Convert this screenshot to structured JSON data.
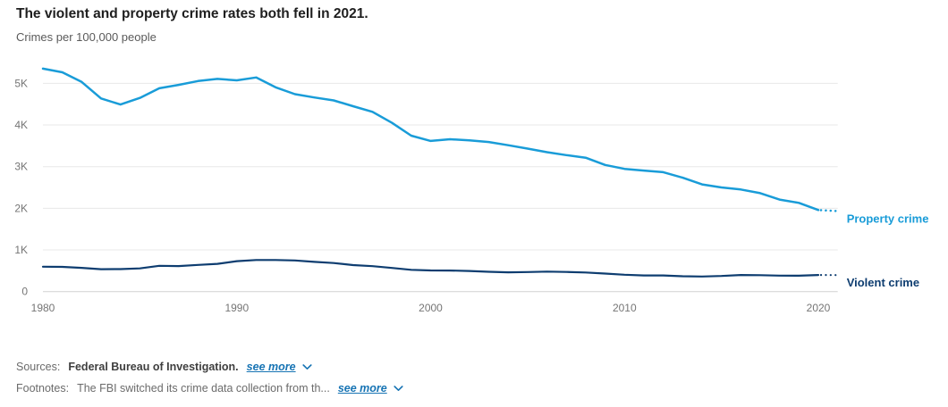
{
  "header": {
    "title": "The violent and property crime rates both fell in 2021.",
    "subtitle": "Crimes per 100,000 people"
  },
  "chart_data": {
    "type": "line",
    "title": "The violent and property crime rates both fell in 2021.",
    "ylabel": "Crimes per 100,000 people",
    "xlabel": "",
    "grid": "horizontal",
    "legend_position": "right-of-line-end",
    "dotted_final_segment": true,
    "ylim": [
      0,
      5600
    ],
    "x": [
      1980,
      1981,
      1982,
      1983,
      1984,
      1985,
      1986,
      1987,
      1988,
      1989,
      1990,
      1991,
      1992,
      1993,
      1994,
      1995,
      1996,
      1997,
      1998,
      1999,
      2000,
      2001,
      2002,
      2003,
      2004,
      2005,
      2006,
      2007,
      2008,
      2009,
      2010,
      2011,
      2012,
      2013,
      2014,
      2015,
      2016,
      2017,
      2018,
      2019,
      2020,
      2021
    ],
    "x_ticks": [
      "1980",
      "1990",
      "2000",
      "2010",
      "2020"
    ],
    "x_tick_years": [
      1980,
      1990,
      2000,
      2010,
      2020
    ],
    "y_ticks": [
      {
        "value": 0,
        "label": "0"
      },
      {
        "value": 1000,
        "label": "1K"
      },
      {
        "value": 2000,
        "label": "2K"
      },
      {
        "value": 3000,
        "label": "3K"
      },
      {
        "value": 4000,
        "label": "4K"
      },
      {
        "value": 5000,
        "label": "5K"
      }
    ],
    "series": [
      {
        "name": "Property crime",
        "color": "#199cd8",
        "values": [
          5353,
          5264,
          5033,
          4637,
          4492,
          4651,
          4882,
          4963,
          5054,
          5107,
          5073,
          5140,
          4904,
          4740,
          4660,
          4591,
          4451,
          4316,
          4053,
          3744,
          3618,
          3658,
          3631,
          3591,
          3514,
          3432,
          3347,
          3276,
          3215,
          3041,
          2946,
          2905,
          2868,
          2734,
          2574,
          2500,
          2452,
          2363,
          2210,
          2131,
          1958,
          1933
        ]
      },
      {
        "name": "Violent crime",
        "color": "#0e3d70",
        "values": [
          597,
          594,
          571,
          538,
          539,
          557,
          620,
          613,
          641,
          667,
          730,
          758,
          758,
          747,
          714,
          685,
          637,
          611,
          568,
          523,
          507,
          505,
          494,
          476,
          463,
          469,
          479,
          472,
          459,
          432,
          405,
          387,
          388,
          369,
          362,
          374,
          398,
          395,
          383,
          381,
          399,
          396
        ]
      }
    ]
  },
  "footer": {
    "sources_label": "Sources:",
    "sources_text": "Federal Bureau of Investigation.",
    "sources_see_more": "see more",
    "footnotes_label": "Footnotes:",
    "footnotes_text": "The FBI switched its crime data collection from th...",
    "footnotes_see_more": "see more"
  }
}
